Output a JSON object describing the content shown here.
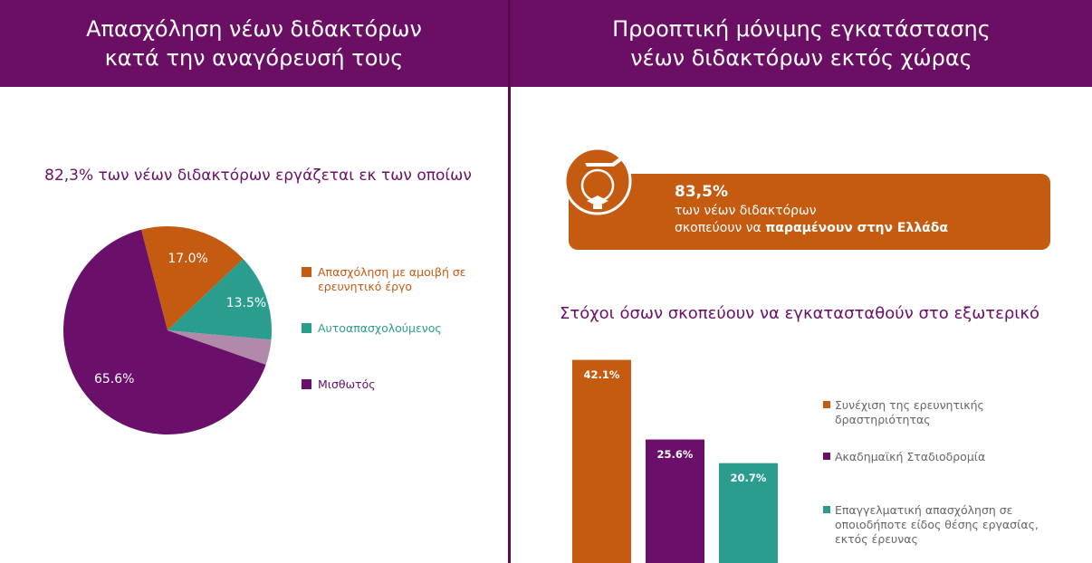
{
  "headers": [
    "Απασχόληση νέων διδακτόρων κατά την αναγόρευσή τους",
    "Προοπτική μόνιμης εγκατάστασης νέων διδακτόρων εκτός χώρας"
  ],
  "banner": {
    "value_text": "83,5%",
    "line1": "των νέων διδακτόρων",
    "line2": "σκοπεύουν να",
    "emphasis": "παραμένουν στην Ελλάδα"
  },
  "chart_data": [
    {
      "type": "pie",
      "title": "82,3% των νέων διδακτόρων εργάζεται εκ των οποίων",
      "categories": [
        "Απασχόληση με αμοιβή σε ερευνητικό έργο",
        "Αυτοαπασχολούμενος",
        null,
        "Μισθωτός"
      ],
      "values": [
        17,
        13.5,
        3.9,
        65.6
      ],
      "value_labels": [
        "17.0%",
        "13.5%",
        null,
        "65.6%"
      ],
      "colors": [
        "#c55a11",
        "#2a9d8f",
        "#b08aa8",
        "#6a0f6a"
      ]
    },
    {
      "type": "bar",
      "title": "Στόχοι όσων σκοπεύουν να εγκατασταθούν στο εξωτερικό",
      "categories": [
        "Συνέχιση της ερευνητικής δραστηριότητας",
        "Ακαδημαϊκή Σταδιοδρομία",
        "Επαγγελματική απασχόληση σε οποιοδήποτε είδος θέσης εργασίας, εκτός έρευνας"
      ],
      "values": [
        42.1,
        25.6,
        20.7
      ],
      "value_labels": [
        "42.1%",
        "25.6%",
        "20.7%"
      ],
      "colors": [
        "#c55a11",
        "#6a0f6a",
        "#2a9d8f"
      ]
    }
  ]
}
